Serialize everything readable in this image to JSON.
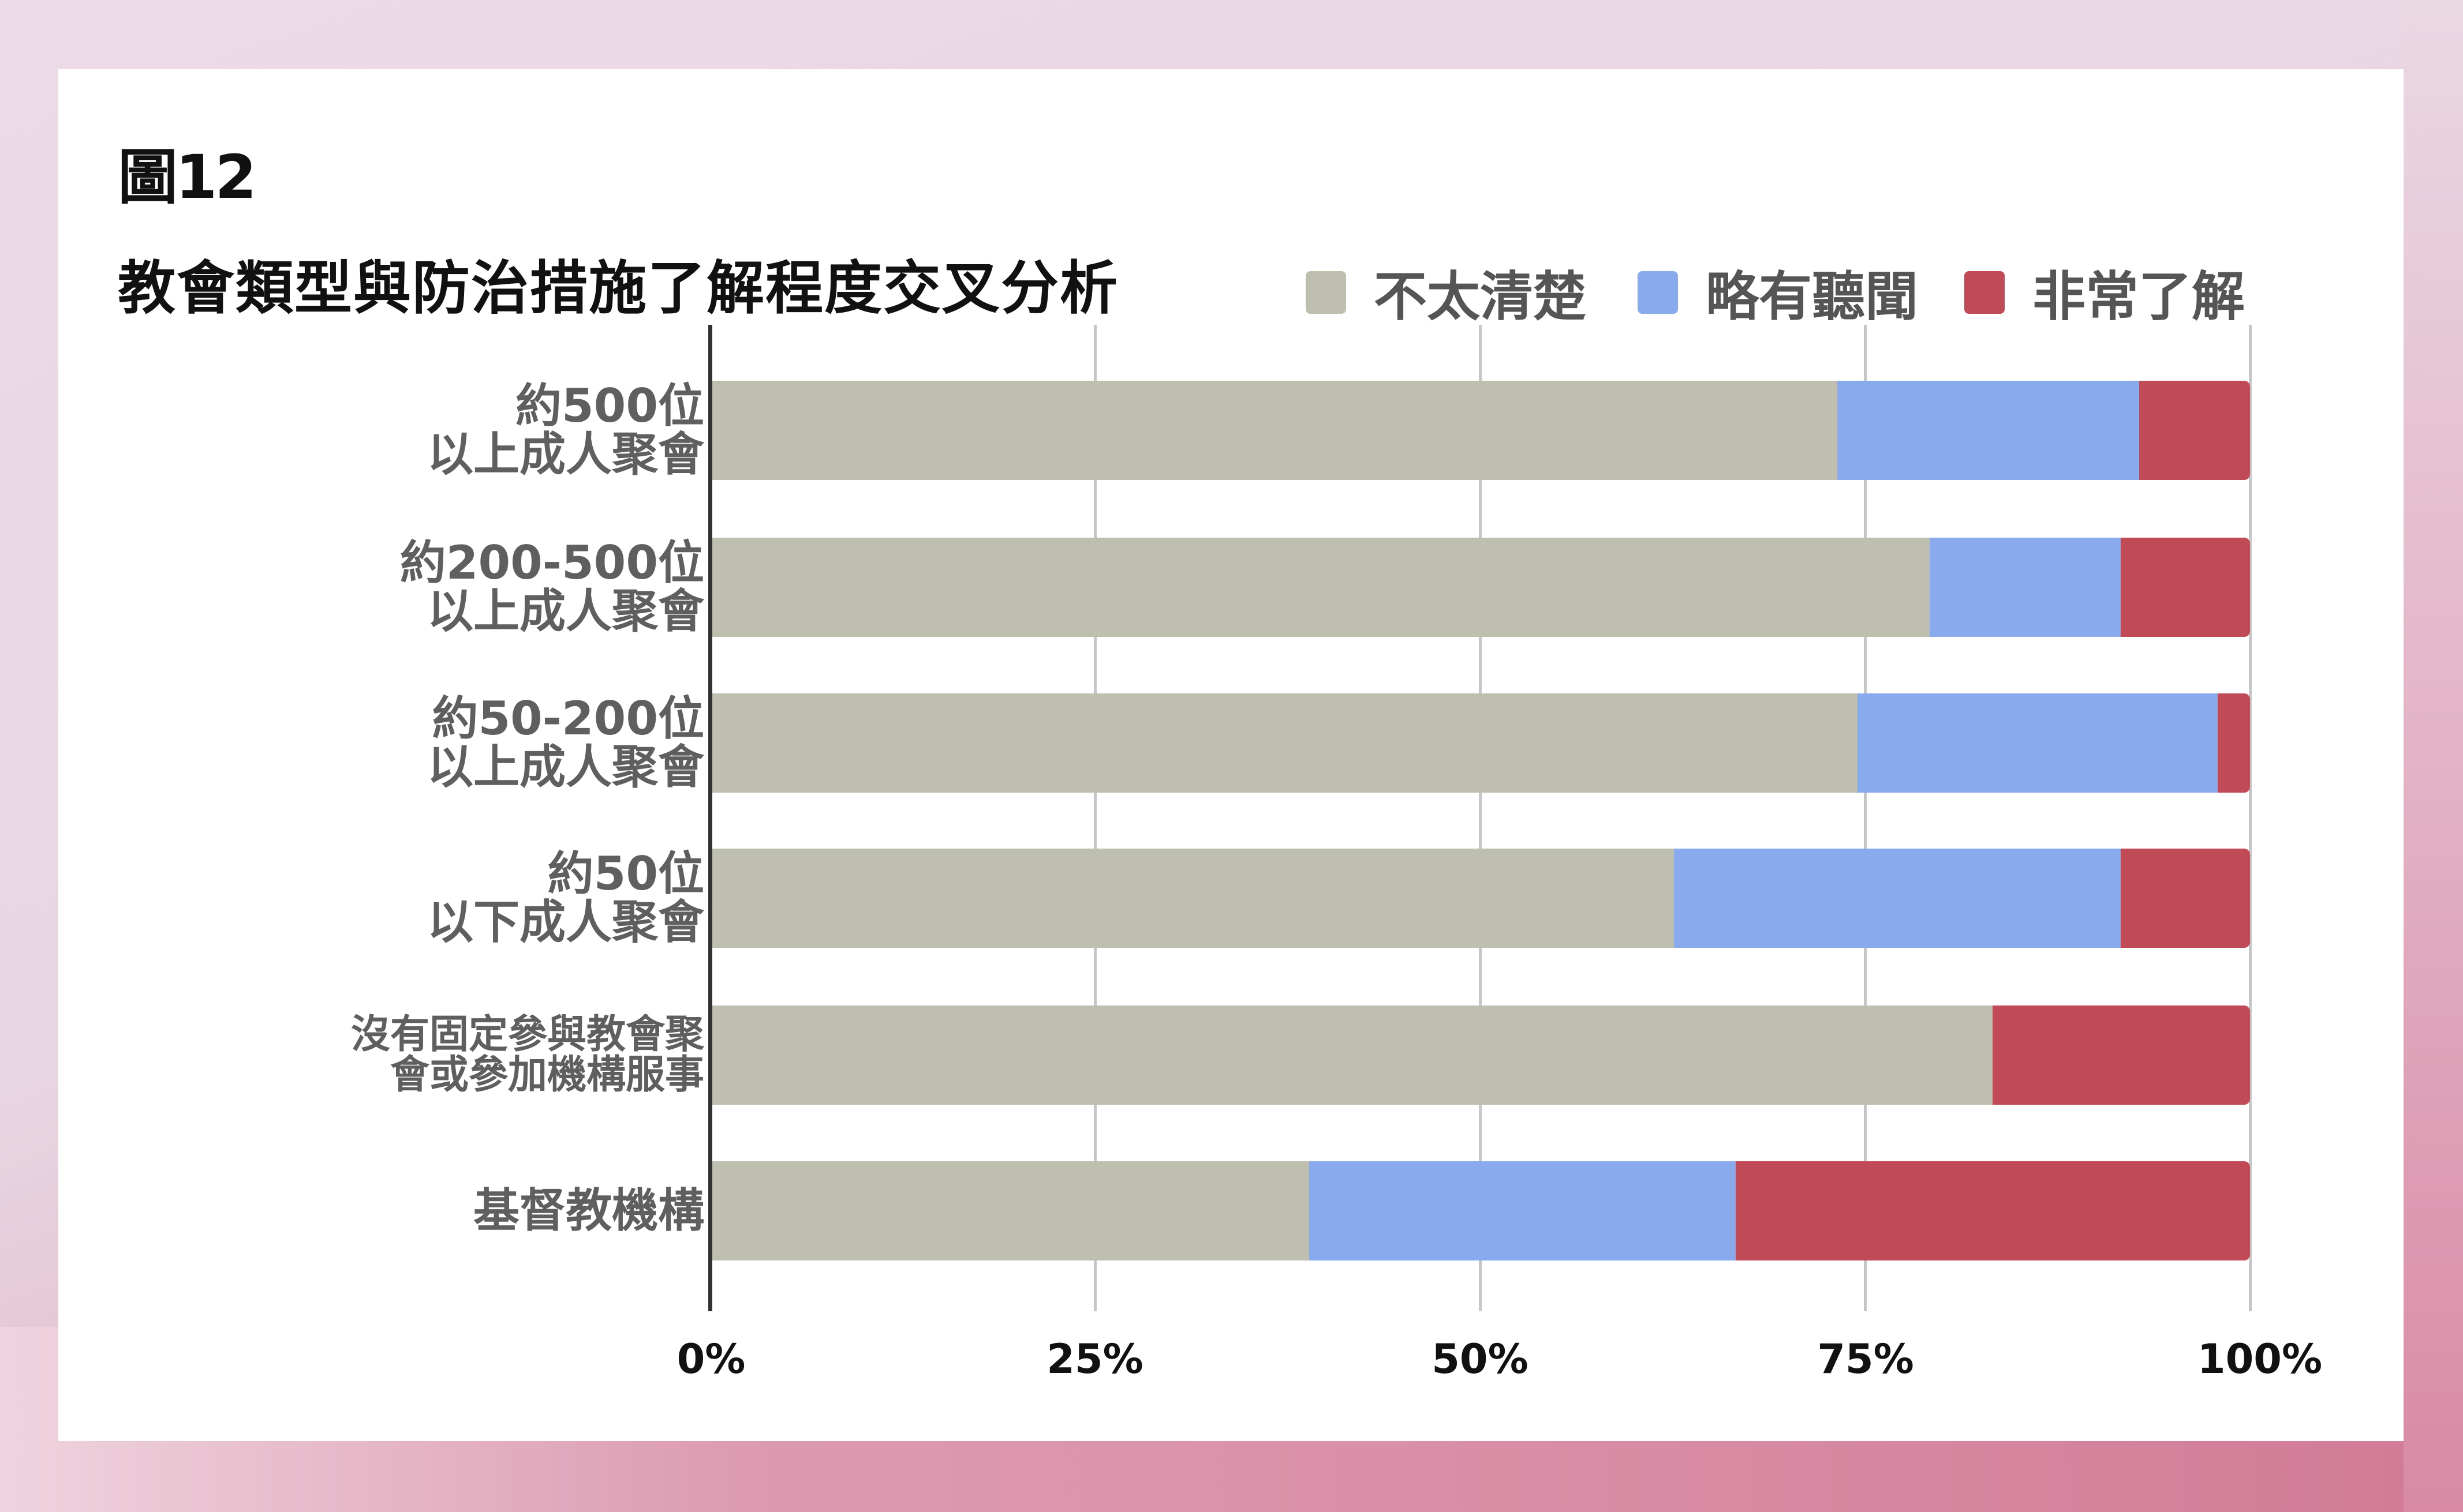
{
  "figure": {
    "label": "圖12",
    "title": "教會類型與防治措施了解程度交叉分析"
  },
  "legend": [
    {
      "label": "不太清楚",
      "color": "#bfbfaf"
    },
    {
      "label": "略有聽聞",
      "color": "#8aaaee"
    },
    {
      "label": "非常了解",
      "color": "#c04a56"
    }
  ],
  "rows": [
    {
      "line1": "約500位",
      "line2": "以上成人聚會"
    },
    {
      "line1": "約200-500位",
      "line2": "以上成人聚會"
    },
    {
      "line1": "約50-200位",
      "line2": "以上成人聚會"
    },
    {
      "line1": "約50位",
      "line2": "以下成人聚會"
    },
    {
      "line1": "沒有固定參與教會聚",
      "line2": "會或參加機構服事"
    },
    {
      "line1": "基督教機構",
      "line2": ""
    }
  ],
  "x_ticks": [
    "0%",
    "25%",
    "50%",
    "75%",
    "100%"
  ],
  "chart_data": {
    "type": "bar",
    "orientation": "horizontal",
    "stacked": true,
    "normalized_percent": true,
    "title": "教會類型與防治措施了解程度交叉分析",
    "figure_label": "圖12",
    "categories": [
      "約500位以上成人聚會",
      "約200-500位以上成人聚會",
      "約50-200位以上成人聚會",
      "約50位以下成人聚會",
      "沒有固定參與教會聚會或參加機構服事",
      "基督教機構"
    ],
    "series": [
      {
        "name": "不太清楚",
        "color": "#bfbfaf",
        "values": [
          73.2,
          79.2,
          74.5,
          62.6,
          83.3,
          38.9
        ]
      },
      {
        "name": "略有聽聞",
        "color": "#8aaaee",
        "values": [
          19.6,
          12.4,
          23.4,
          29.0,
          0.0,
          27.7
        ]
      },
      {
        "name": "非常了解",
        "color": "#c04a56",
        "values": [
          7.2,
          8.4,
          2.1,
          8.4,
          16.7,
          33.4
        ]
      }
    ],
    "xlabel": "",
    "ylabel": "",
    "xlim": [
      0,
      100
    ],
    "x_tick_labels": [
      "0%",
      "25%",
      "50%",
      "75%",
      "100%"
    ],
    "grid": "vertical",
    "legend_position": "top-right"
  }
}
